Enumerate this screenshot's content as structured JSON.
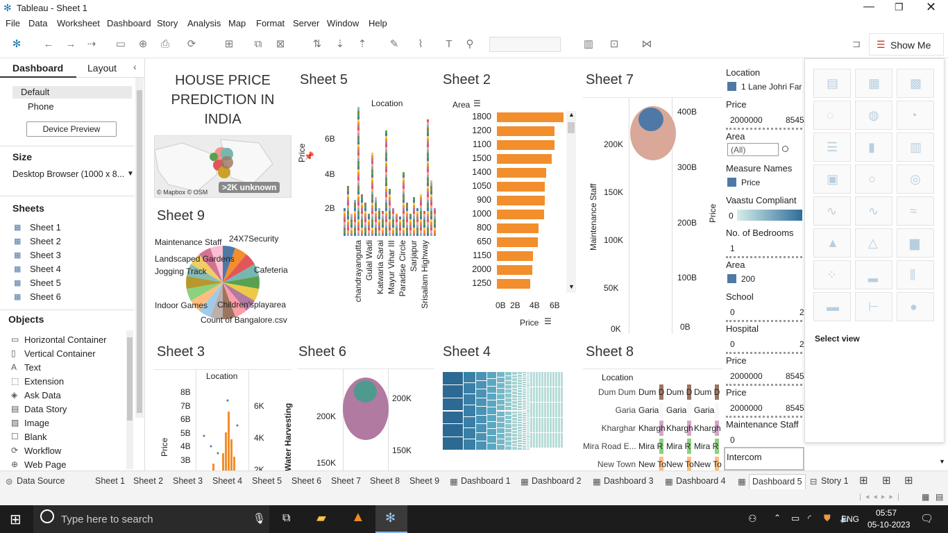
{
  "window": {
    "title": "Tableau - Sheet 1"
  },
  "menu": [
    "File",
    "Data",
    "Worksheet",
    "Dashboard",
    "Story",
    "Analysis",
    "Map",
    "Format",
    "Server",
    "Window",
    "Help"
  ],
  "toolbar": {
    "show_me": "Show Me"
  },
  "left_panel": {
    "tabs": [
      "Dashboard",
      "Layout"
    ],
    "device": [
      "Default",
      "Phone"
    ],
    "device_preview": "Device Preview",
    "size_heading": "Size",
    "size_value": "Desktop Browser (1000 x 8...",
    "sheets_heading": "Sheets",
    "sheets": [
      "Sheet 1",
      "Sheet 2",
      "Sheet 3",
      "Sheet 4",
      "Sheet 5",
      "Sheet 6"
    ],
    "objects_heading": "Objects",
    "objects": [
      "Horizontal Container",
      "Vertical Container",
      "Text",
      "Extension",
      "Ask Data",
      "Data Story",
      "Image",
      "Blank",
      "Workflow",
      "Web Page"
    ]
  },
  "canvas": {
    "dashboard_title": "HOUSE PRICE PREDICTION IN INDIA",
    "map_attribution": "© Mapbox © OSM",
    "unknown_badge": ">2K unknown",
    "sheet5": {
      "title": "Sheet 5",
      "header": "Location",
      "ylabel": "Price",
      "yticks": [
        "6B",
        "4B",
        "2B"
      ],
      "xlabels": [
        "chandrayangutta",
        "Gulal Wadi",
        "Katwaria Sarai",
        "Mayur Vihar III",
        "Paradise Circle",
        "Sarjapur",
        "Srisailam Highway"
      ]
    },
    "sheet2": {
      "title": "Sheet 2",
      "row_header": "Area",
      "xlabel": "Price",
      "xticks": [
        "0B",
        "2B",
        "4B",
        "6B"
      ],
      "chart_data": {
        "type": "bar",
        "categories": [
          "1800",
          "1200",
          "1100",
          "1500",
          "1400",
          "1050",
          "900",
          "1000",
          "800",
          "650",
          "1150",
          "2000",
          "1250"
        ],
        "values": [
          6.2,
          5.4,
          5.4,
          5.1,
          4.6,
          4.5,
          4.5,
          4.4,
          3.9,
          3.8,
          3.4,
          3.3,
          3.1
        ],
        "xlabel": "Price",
        "ylabel": "Area",
        "xlim": [
          0,
          7
        ]
      }
    },
    "sheet7": {
      "title": "Sheet 7",
      "ylabel": "Maintenance Staff",
      "ylabel2": "Price",
      "yticks": [
        "200K",
        "150K",
        "100K",
        "50K",
        "0K"
      ],
      "yticks2": [
        "400B",
        "300B",
        "200B",
        "100B",
        "0B"
      ]
    },
    "sheet9": {
      "title": "Sheet 9",
      "labels": [
        "Maintenance Staff",
        "24X7Security",
        "Landscaped Gardens",
        "Cafeteria",
        "Jogging Track",
        "Indoor Games",
        "Children'splayarea",
        "Count of Bangalore.csv"
      ],
      "chart_data": {
        "type": "pie",
        "slices": [
          "#4e79a7",
          "#f28e2b",
          "#e15759",
          "#76b7b2",
          "#59a14f",
          "#edc948",
          "#b07aa1",
          "#ff9da7",
          "#9c755f",
          "#bab0ac",
          "#a0cbe8",
          "#ffbe7d",
          "#8cd17d",
          "#b6992d",
          "#86bcb6",
          "#f1ce63",
          "#d37295",
          "#fabfd2"
        ]
      }
    },
    "sheet3": {
      "title": "Sheet 3",
      "header": "Location",
      "ylabel": "Price",
      "ylabel2": "Water Harvesting",
      "yticks": [
        "8B",
        "7B",
        "6B",
        "5B",
        "4B",
        "3B"
      ],
      "yticks2": [
        "6K",
        "4K",
        "2K"
      ]
    },
    "sheet6": {
      "title": "Sheet 6",
      "yticks": [
        "200K",
        "150K"
      ],
      "yticks2": [
        "200K",
        "150K"
      ]
    },
    "sheet4": {
      "title": "Sheet 4"
    },
    "sheet8": {
      "title": "Sheet 8",
      "header": "Location",
      "rows": [
        "Dum Dum",
        "Garia",
        "Kharghar",
        "Mira Road E...",
        "New Town"
      ],
      "cells": [
        [
          "Dum D",
          "Dum D",
          "Dum D"
        ],
        [
          "Garia",
          "Garia",
          "Garia"
        ],
        [
          "Khargh",
          "Khargh",
          "Khargh"
        ],
        [
          "Mira R",
          "Mira R",
          "Mira R"
        ],
        [
          "New To",
          "New To",
          "New To"
        ]
      ]
    }
  },
  "filters": [
    {
      "h": "Location",
      "v": "1 Lane Johri Far"
    },
    {
      "h": "Price",
      "v": "2000000",
      "v2": "8545"
    },
    {
      "h": "Area",
      "v": "(All)"
    },
    {
      "h": "Measure Names",
      "v": "Price"
    },
    {
      "h": "Vaastu Compliant",
      "v": "0"
    },
    {
      "h": "No. of Bedrooms",
      "v": "1"
    },
    {
      "h": "Area",
      "v": "200"
    },
    {
      "h": "School",
      "v": "0",
      "v2": "2"
    },
    {
      "h": "Hospital",
      "v": "0",
      "v2": "2"
    },
    {
      "h": "Price",
      "v": "2000000",
      "v2": "8545"
    },
    {
      "h": "Price",
      "v": "2000000",
      "v2": "8545"
    },
    {
      "h": "Maintenance Staff",
      "v": "0"
    },
    {
      "h": "Intercom",
      "v": ""
    }
  ],
  "showme": {
    "select_view": "Select view"
  },
  "tabs": [
    "Data Source",
    "Sheet 1",
    "Sheet 2",
    "Sheet 3",
    "Sheet 4",
    "Sheet 5",
    "Sheet 6",
    "Sheet 7",
    "Sheet 8",
    "Sheet 9",
    "Dashboard 1",
    "Dashboard 2",
    "Dashboard 3",
    "Dashboard 4",
    "Dashboard 5",
    "Story 1"
  ],
  "taskbar": {
    "search_placeholder": "Type here to search",
    "lang": "ENG",
    "time": "05:57",
    "date": "05-10-2023"
  }
}
